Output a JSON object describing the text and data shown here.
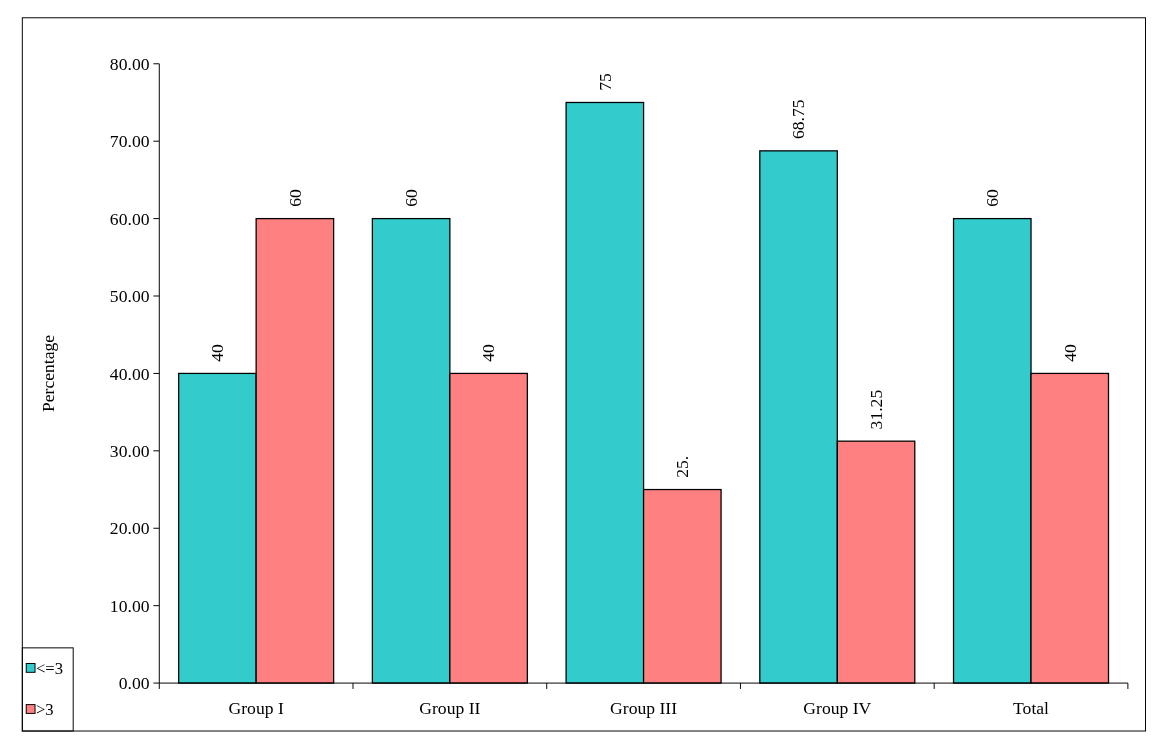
{
  "chart_data": {
    "type": "bar",
    "ylabel": "Percentage",
    "categories": [
      "Group I",
      "Group II",
      "Group III",
      "Group IV",
      "Total"
    ],
    "series": [
      {
        "name": "<=3",
        "color": "#33cccc",
        "values": [
          40,
          60,
          75,
          68.75,
          60
        ],
        "value_labels": [
          "40",
          "60",
          "75",
          "68.75",
          "60"
        ]
      },
      {
        "name": ">3",
        "color": "#ff8080",
        "values": [
          60,
          40,
          25,
          31.25,
          40
        ],
        "value_labels": [
          "60",
          "40",
          "25.",
          "31.25",
          "40"
        ]
      }
    ],
    "ylim": [
      0,
      80
    ],
    "yticks": [
      {
        "value": 0,
        "label": "0.00"
      },
      {
        "value": 10,
        "label": "10.00"
      },
      {
        "value": 20,
        "label": "20.00"
      },
      {
        "value": 30,
        "label": "30.00"
      },
      {
        "value": 40,
        "label": "40.00"
      },
      {
        "value": 50,
        "label": "50.00"
      },
      {
        "value": 60,
        "label": "60.00"
      },
      {
        "value": 70,
        "label": "70.00"
      },
      {
        "value": 80,
        "label": "80.00"
      }
    ],
    "grid": false,
    "legend": "bottom left"
  }
}
